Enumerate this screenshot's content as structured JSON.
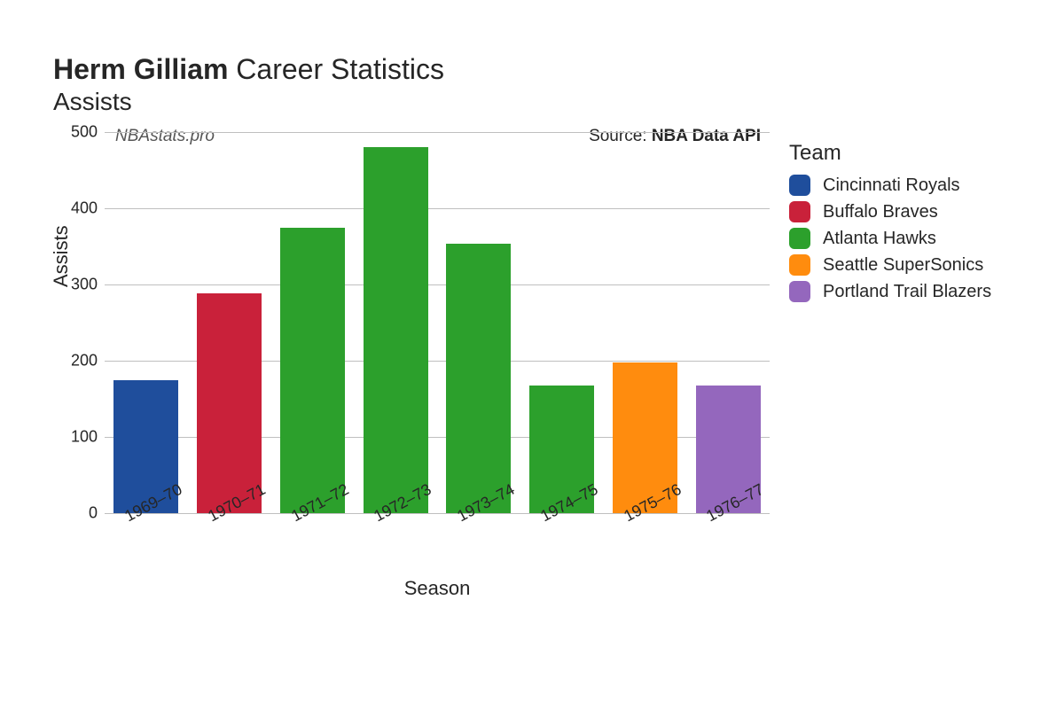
{
  "title": {
    "bold_part": "Herm Gilliam",
    "rest": " Career Statistics",
    "subtitle": "Assists"
  },
  "watermark": "NBAstats.pro",
  "source_prefix": "Source: ",
  "source_name": "NBA Data API",
  "chart": {
    "type": "bar",
    "xlabel": "Season",
    "ylabel": "Assists",
    "ylim": [
      0,
      500
    ],
    "ytick_step": 100,
    "yticks": [
      0,
      100,
      200,
      300,
      400,
      500
    ],
    "grid_color": "#bfbfbf",
    "background_color": "#ffffff",
    "label_fontsize": 22,
    "tick_fontsize": 18,
    "bar_width": 0.78,
    "categories": [
      "1969–70",
      "1970–71",
      "1971–72",
      "1972–73",
      "1973–74",
      "1974–75",
      "1975–76",
      "1976–77"
    ],
    "values": [
      175,
      288,
      375,
      480,
      353,
      168,
      198,
      168
    ],
    "bar_colors": [
      "#1f4e9c",
      "#c9213a",
      "#2ca02c",
      "#2ca02c",
      "#2ca02c",
      "#2ca02c",
      "#ff8c0e",
      "#9467bd"
    ]
  },
  "legend": {
    "title": "Team",
    "items": [
      {
        "label": "Cincinnati Royals",
        "color": "#1f4e9c"
      },
      {
        "label": "Buffalo Braves",
        "color": "#c9213a"
      },
      {
        "label": "Atlanta Hawks",
        "color": "#2ca02c"
      },
      {
        "label": "Seattle SuperSonics",
        "color": "#ff8c0e"
      },
      {
        "label": "Portland Trail Blazers",
        "color": "#9467bd"
      }
    ]
  }
}
